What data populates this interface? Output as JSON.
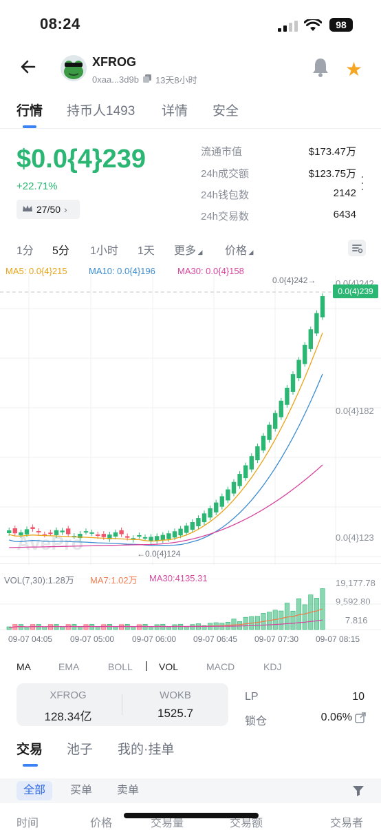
{
  "status": {
    "time": "08:24",
    "battery": "98"
  },
  "header": {
    "token_name": "XFROG",
    "address": "0xaa...3d9b",
    "age": "13天8小时"
  },
  "tabs": [
    "行情",
    "持币人1493",
    "详情",
    "安全"
  ],
  "price": {
    "value": "$0.0{4}239",
    "change": "+22.71%",
    "rank": "27/50"
  },
  "stats": [
    {
      "label": "流通市值",
      "value": "$173.47万"
    },
    {
      "label": "24h成交额",
      "value": "$123.75万"
    },
    {
      "label": "24h钱包数",
      "value": "2142"
    },
    {
      "label": "24h交易数",
      "value": "6434"
    }
  ],
  "timeframes": [
    "1分",
    "5分",
    "1小时",
    "1天",
    "更多",
    "价格"
  ],
  "ma_labels": {
    "ma5": "MA5: 0.0{4}215",
    "ma10": "MA10: 0.0{4}196",
    "ma30": "MA30: 0.0{4}158"
  },
  "chart_labels": {
    "high_marker": "0.0{4}242→",
    "current_price": "0.0(4)239",
    "axis_top": "0.0{4}242",
    "axis_mid": "0.0{4}182",
    "axis_low": "0.0{4}123",
    "low_marker": "←0.0{4}124",
    "watermark": "AvePro"
  },
  "volume": {
    "label": "VOL(7,30):1.28万",
    "ma7": "MA7:1.02万",
    "ma30": "MA30:4135.31",
    "axis": [
      "19,177.78",
      "9,592.80",
      "7.816"
    ]
  },
  "x_axis": [
    "09-07 04:05",
    "09-07 05:00",
    "09-07 06:00",
    "09-07 06:45",
    "09-07 07:30",
    "09-07 08:15"
  ],
  "indicators": [
    "MA",
    "EMA",
    "BOLL",
    "VOL",
    "MACD",
    "KDJ"
  ],
  "pair": {
    "left_label": "XFROG",
    "left_value": "128.34亿",
    "right_label": "WOKB",
    "right_value": "1525.7"
  },
  "lp": {
    "lp_label": "LP",
    "lp_value": "10",
    "lock_label": "锁仓",
    "lock_value": "0.06%"
  },
  "trade_tabs": [
    "交易",
    "池子",
    "我的·挂单"
  ],
  "filters": [
    "全部",
    "买单",
    "卖单"
  ],
  "columns": [
    "时间",
    "价格",
    "交易量",
    "交易额",
    "交易者"
  ],
  "colors": {
    "up": "#2bb673",
    "down": "#f0566b",
    "ma5": "#e8a317",
    "ma10": "#3b8bd0",
    "ma30": "#d6449e",
    "accent": "#3b82f6"
  },
  "chart_data": {
    "type": "candlestick",
    "x": [
      "09-07 04:05",
      "09-07 05:00",
      "09-07 06:00",
      "09-07 06:45",
      "09-07 07:30",
      "09-07 08:15"
    ],
    "y_ticks": [
      "0.0{4}123",
      "0.0{4}182",
      "0.0{4}242"
    ],
    "last": "0.0(4)239",
    "high": "0.0{4}242",
    "low": "0.0{4}124",
    "series": [
      {
        "name": "MA5",
        "last": "0.0{4}215"
      },
      {
        "name": "MA10",
        "last": "0.0{4}196"
      },
      {
        "name": "MA30",
        "last": "0.0{4}158"
      }
    ],
    "volume_ticks": [
      "7.816",
      "9,592.80",
      "19,177.78"
    ]
  }
}
